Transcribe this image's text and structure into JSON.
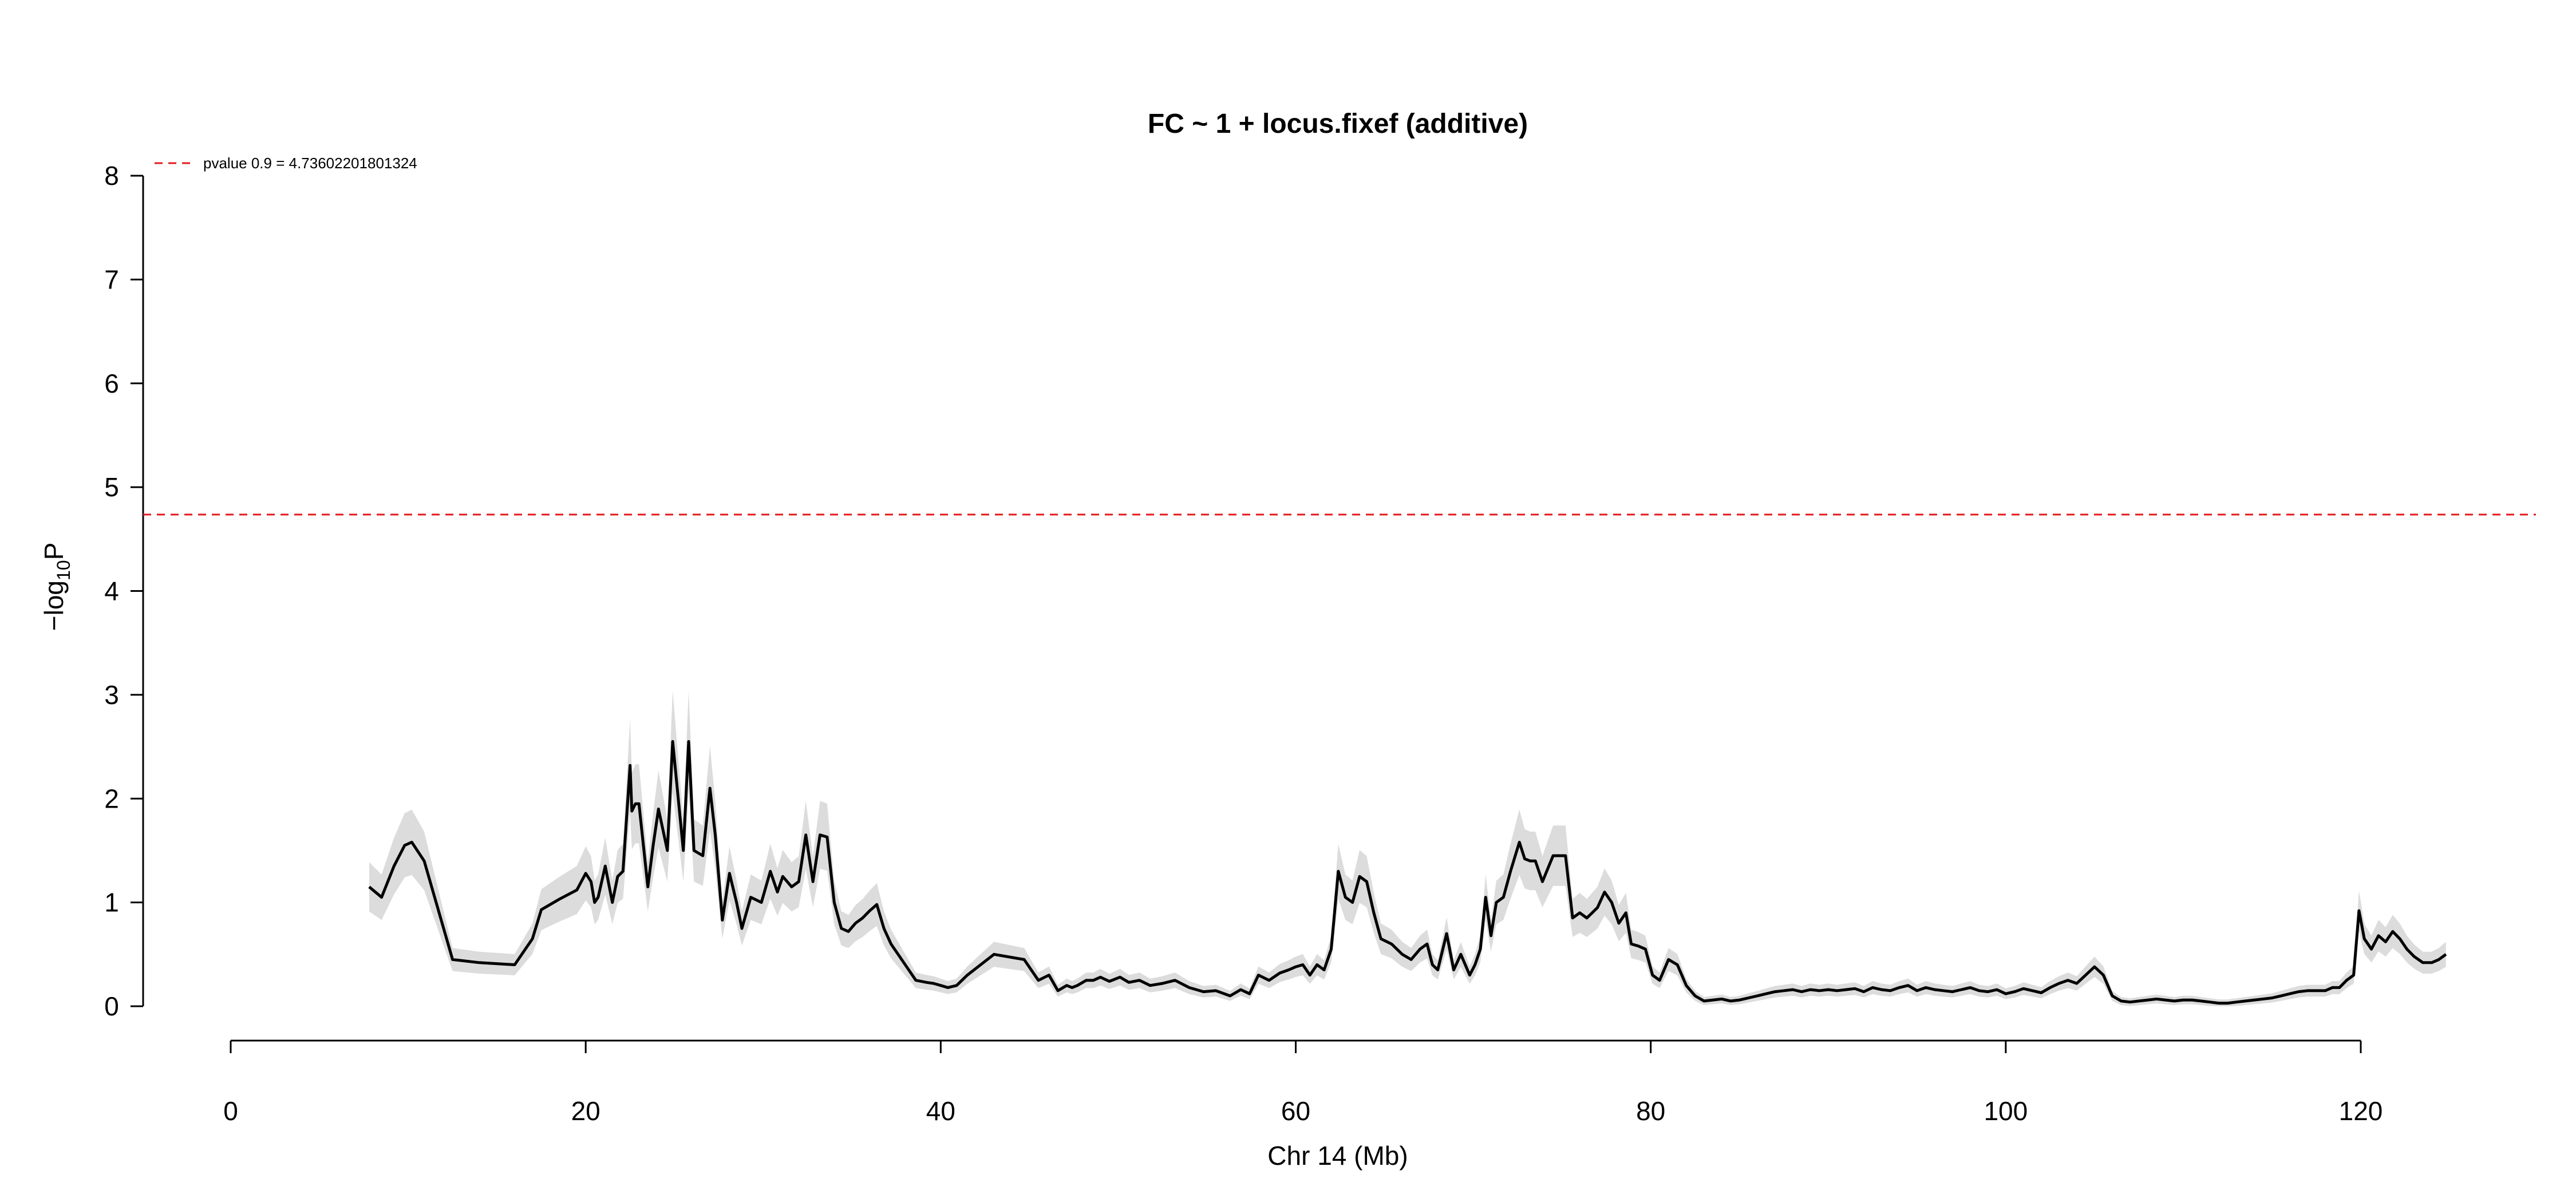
{
  "chart_data": {
    "type": "line",
    "title": "FC ~ 1 + locus.fixef (additive)",
    "xlabel": "Chr 14 (Mb)",
    "ylabel_base": "−log",
    "ylabel_sub": "10",
    "ylabel_suffix": "P",
    "xlim": [
      0,
      130
    ],
    "ylim": [
      0,
      8
    ],
    "x_ticks": [
      0,
      20,
      40,
      60,
      80,
      100,
      120
    ],
    "y_ticks": [
      0,
      1,
      2,
      3,
      4,
      5,
      6,
      7,
      8
    ],
    "grid": false,
    "threshold": {
      "value": 4.73602201801324,
      "color": "#e31a1c",
      "label": "pvalue 0.9 = 4.73602201801324"
    },
    "legend_position": "top-left",
    "series": [
      {
        "x": [
          7.8,
          8.5,
          9.2,
          9.8,
          10.2,
          10.9,
          12.5,
          14,
          16,
          17,
          17.5,
          18.5,
          19.5,
          20,
          20.3,
          20.5,
          20.7,
          21.1,
          21.5,
          21.8,
          22.1,
          22.5,
          22.6,
          22.8,
          23.0,
          23.5,
          23.8,
          24.1,
          24.6,
          24.9,
          25.5,
          25.8,
          26.1,
          26.6,
          27.0,
          27.3,
          27.7,
          28.1,
          28.5,
          28.8,
          29.3,
          29.9,
          30.4,
          30.8,
          31.1,
          31.6,
          32,
          32.4,
          32.8,
          33.2,
          33.6,
          34.0,
          34.4,
          34.8,
          35.2,
          35.6,
          36.0,
          36.4,
          36.8,
          37.2,
          38.2,
          38.6,
          39.2,
          39.6,
          40.0,
          40.4,
          40.9,
          41.5,
          43,
          44.7,
          45.5,
          46.1,
          46.6,
          47.1,
          47.4,
          47.7,
          48.2,
          48.6,
          49,
          49.5,
          50.1,
          50.6,
          51.2,
          51.8,
          52.5,
          53.2,
          54,
          54.8,
          55.5,
          56.3,
          56.9,
          57.4,
          57.9,
          58.5,
          59.1,
          59.6,
          60,
          60.4,
          60.8,
          61.2,
          61.6,
          62.0,
          62.4,
          62.8,
          63.2,
          63.6,
          64.0,
          64.4,
          64.8,
          65.4,
          66,
          66.5,
          67.0,
          67.4,
          67.7,
          68.0,
          68.5,
          68.9,
          69.3,
          69.8,
          70.1,
          70.4,
          70.7,
          71.0,
          71.3,
          71.7,
          72.1,
          72.6,
          72.9,
          73.2,
          73.5,
          73.9,
          74.5,
          75.2,
          75.6,
          76.0,
          76.4,
          76.7,
          77.0,
          77.4,
          77.8,
          78.2,
          78.6,
          78.9,
          79.3,
          79.7,
          80.1,
          80.5,
          81,
          81.5,
          82,
          82.5,
          83,
          83.5,
          84,
          84.5,
          85,
          85.5,
          86,
          86.5,
          87,
          87.5,
          88,
          88.5,
          89,
          89.5,
          90,
          90.5,
          91,
          91.5,
          92,
          92.5,
          93,
          93.5,
          94,
          94.5,
          95,
          95.5,
          96,
          96.5,
          97,
          97.5,
          98,
          98.5,
          99,
          99.5,
          100,
          100.5,
          101,
          101.5,
          102,
          102.5,
          103,
          103.5,
          104,
          104.5,
          105,
          105.5,
          106,
          106.5,
          107,
          107.5,
          108,
          108.5,
          109,
          109.5,
          110,
          110.5,
          111,
          111.5,
          112,
          112.5,
          113,
          113.5,
          114,
          114.5,
          115,
          115.5,
          116,
          116.5,
          117,
          117.5,
          118,
          118.4,
          118.8,
          119.2,
          119.6,
          119.9,
          120.2,
          120.6,
          121.0,
          121.4,
          121.8,
          122.2,
          122.6,
          123.0,
          123.5,
          124,
          124.4,
          124.8
        ],
        "y": [
          1.15,
          1.05,
          1.35,
          1.55,
          1.58,
          1.4,
          0.45,
          0.42,
          0.4,
          0.65,
          0.93,
          1.03,
          1.12,
          1.28,
          1.2,
          1.0,
          1.05,
          1.35,
          1.0,
          1.25,
          1.3,
          2.32,
          1.88,
          1.95,
          1.95,
          1.15,
          1.55,
          1.9,
          1.5,
          2.55,
          1.5,
          2.55,
          1.5,
          1.45,
          2.1,
          1.65,
          0.83,
          1.28,
          1.0,
          0.75,
          1.05,
          1.0,
          1.3,
          1.1,
          1.25,
          1.15,
          1.2,
          1.65,
          1.2,
          1.65,
          1.63,
          1.0,
          0.75,
          0.72,
          0.8,
          0.85,
          0.92,
          0.98,
          0.75,
          0.6,
          0.35,
          0.25,
          0.23,
          0.22,
          0.2,
          0.18,
          0.2,
          0.3,
          0.5,
          0.45,
          0.25,
          0.3,
          0.15,
          0.2,
          0.18,
          0.2,
          0.25,
          0.25,
          0.28,
          0.24,
          0.28,
          0.23,
          0.25,
          0.2,
          0.22,
          0.25,
          0.18,
          0.14,
          0.15,
          0.1,
          0.16,
          0.12,
          0.3,
          0.25,
          0.32,
          0.35,
          0.38,
          0.4,
          0.3,
          0.4,
          0.35,
          0.55,
          1.3,
          1.05,
          1.0,
          1.25,
          1.2,
          0.9,
          0.65,
          0.6,
          0.5,
          0.45,
          0.55,
          0.6,
          0.4,
          0.35,
          0.7,
          0.35,
          0.5,
          0.3,
          0.4,
          0.55,
          1.05,
          0.68,
          1.0,
          1.05,
          1.3,
          1.58,
          1.42,
          1.4,
          1.4,
          1.2,
          1.45,
          1.45,
          0.85,
          0.9,
          0.85,
          0.9,
          0.95,
          1.1,
          1.0,
          0.8,
          0.9,
          0.6,
          0.58,
          0.55,
          0.3,
          0.25,
          0.45,
          0.4,
          0.2,
          0.1,
          0.05,
          0.06,
          0.07,
          0.05,
          0.06,
          0.08,
          0.1,
          0.12,
          0.14,
          0.15,
          0.16,
          0.14,
          0.16,
          0.15,
          0.16,
          0.15,
          0.16,
          0.17,
          0.14,
          0.18,
          0.16,
          0.15,
          0.18,
          0.2,
          0.15,
          0.18,
          0.16,
          0.15,
          0.14,
          0.16,
          0.18,
          0.15,
          0.14,
          0.16,
          0.12,
          0.14,
          0.17,
          0.15,
          0.13,
          0.18,
          0.22,
          0.25,
          0.22,
          0.3,
          0.38,
          0.3,
          0.1,
          0.05,
          0.04,
          0.05,
          0.06,
          0.07,
          0.06,
          0.05,
          0.06,
          0.06,
          0.05,
          0.04,
          0.03,
          0.03,
          0.04,
          0.05,
          0.06,
          0.07,
          0.08,
          0.1,
          0.12,
          0.14,
          0.15,
          0.15,
          0.15,
          0.18,
          0.18,
          0.25,
          0.3,
          0.92,
          0.65,
          0.55,
          0.68,
          0.62,
          0.72,
          0.65,
          0.55,
          0.48,
          0.42,
          0.42,
          0.45,
          0.5
        ]
      }
    ]
  }
}
